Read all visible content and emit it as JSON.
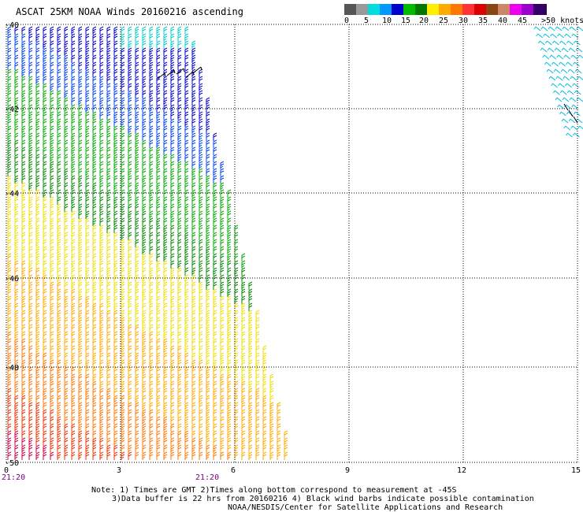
{
  "title": "ASCAT 25KM NOAA Winds 20160216 ascending",
  "scale": {
    "colors": [
      "#555555",
      "#999999",
      "#00dddd",
      "#0099ff",
      "#0000cc",
      "#00bb00",
      "#007700",
      "#ffee00",
      "#ffaa00",
      "#ff7700",
      "#ff3333",
      "#dd0000",
      "#8b4513",
      "#cc8866",
      "#ee00ee",
      "#9900cc",
      "#330066"
    ],
    "labels": [
      "0",
      "5",
      "10",
      "15",
      "20",
      "25",
      "30",
      "35",
      "40",
      "45",
      ">50 knots"
    ]
  },
  "axes": {
    "y_labels": [
      "-40",
      "-42",
      "-44",
      "-46",
      "-48",
      "-50"
    ],
    "x_labels": [
      "0",
      "3",
      "6",
      "9",
      "12",
      "15"
    ],
    "time_labels": [
      "21:20",
      "21:20"
    ]
  },
  "notes": {
    "line1": "Note: 1) Times are GMT 2)Times along bottom correspond to measurement at -45S",
    "line2": "3)Data buffer is 22 hrs from 20160216 4) Black wind barbs indicate possible contamination",
    "line3": "NOAA/NESDIS/Center for Satellite Applications and Research"
  }
}
